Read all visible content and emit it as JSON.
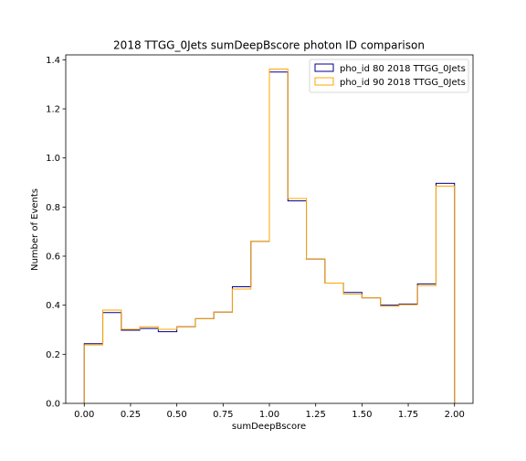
{
  "chart_data": {
    "type": "line",
    "title": "2018 TTGG_0Jets sumDeepBscore photon ID comparison",
    "xlabel": "sumDeepBscore",
    "ylabel": "Number of Events",
    "xlim": [
      -0.1,
      2.1
    ],
    "ylim": [
      0,
      1.42
    ],
    "xticks": [
      0.0,
      0.25,
      0.5,
      0.75,
      1.0,
      1.25,
      1.5,
      1.75,
      2.0
    ],
    "xtick_labels": [
      "0.00",
      "0.25",
      "0.50",
      "0.75",
      "1.00",
      "1.25",
      "1.50",
      "1.75",
      "2.00"
    ],
    "yticks": [
      0.0,
      0.2,
      0.4,
      0.6,
      0.8,
      1.0,
      1.2,
      1.4
    ],
    "ytick_labels": [
      "0.0",
      "0.2",
      "0.4",
      "0.6",
      "0.8",
      "1.0",
      "1.2",
      "1.4"
    ],
    "bin_edges": [
      0.0,
      0.1,
      0.2,
      0.3,
      0.4,
      0.5,
      0.6,
      0.7,
      0.8,
      0.9,
      1.0,
      1.1,
      1.2,
      1.3,
      1.4,
      1.5,
      1.6,
      1.7,
      1.8,
      1.9,
      2.0
    ],
    "grid": false,
    "legend_position": "top-right",
    "series": [
      {
        "name": "pho_id 80 2018 TTGG_0Jets",
        "color": "#00008b",
        "values": [
          0.243,
          0.37,
          0.298,
          0.305,
          0.292,
          0.312,
          0.345,
          0.372,
          0.475,
          0.66,
          1.35,
          0.825,
          0.588,
          0.49,
          0.452,
          0.43,
          0.4,
          0.405,
          0.487,
          0.897
        ]
      },
      {
        "name": "pho_id 90 2018 TTGG_0Jets",
        "color": "#ffa500",
        "values": [
          0.238,
          0.38,
          0.302,
          0.312,
          0.302,
          0.312,
          0.345,
          0.372,
          0.466,
          0.66,
          1.362,
          0.835,
          0.588,
          0.49,
          0.445,
          0.43,
          0.396,
          0.402,
          0.48,
          0.885
        ]
      }
    ]
  }
}
